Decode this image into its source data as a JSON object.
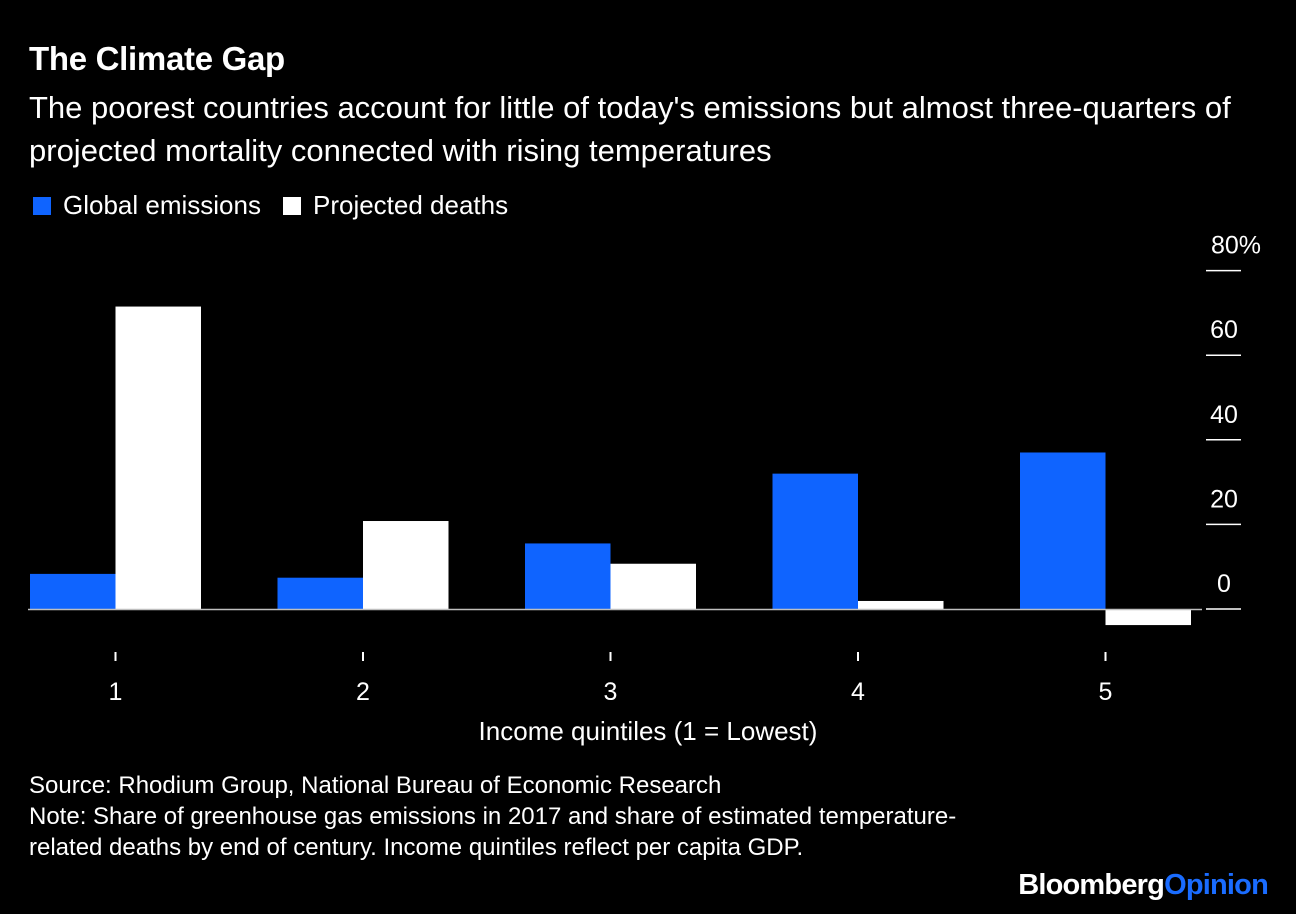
{
  "header": {
    "title": "The Climate Gap",
    "subtitle": "The poorest countries account for little of today's emissions but almost three-quarters of projected mortality connected with rising temperatures"
  },
  "legend": {
    "items": [
      {
        "label": "Global emissions",
        "color": "#0f64ff"
      },
      {
        "label": "Projected deaths",
        "color": "#ffffff"
      }
    ]
  },
  "chart_data": {
    "type": "bar",
    "categories": [
      "1",
      "2",
      "3",
      "4",
      "5"
    ],
    "series": [
      {
        "name": "Global emissions",
        "color": "#0f64ff",
        "values": [
          8.3,
          7.4,
          15.5,
          32.0,
          37.0
        ]
      },
      {
        "name": "Projected deaths",
        "color": "#ffffff",
        "values": [
          71.5,
          20.8,
          10.7,
          1.9,
          -3.8
        ]
      }
    ],
    "xlabel": "Income quintiles (1 = Lowest)",
    "ylabel": "",
    "ylim": [
      -8,
      80
    ],
    "yticks": [
      0,
      20,
      40,
      60,
      80
    ],
    "ytick_labels": [
      "0",
      "20",
      "40",
      "60",
      "80%"
    ],
    "y_axis_side": "right",
    "legend_position": "top-left",
    "grid": false
  },
  "footer": {
    "source": "Source: Rhodium Group, National Bureau of Economic Research",
    "note": "Note: Share of greenhouse gas emissions in 2017 and share of estimated temperature-related deaths by end of century. Income quintiles reflect per capita GDP.",
    "brand_primary": "Bloomberg",
    "brand_secondary": "Opinion"
  }
}
